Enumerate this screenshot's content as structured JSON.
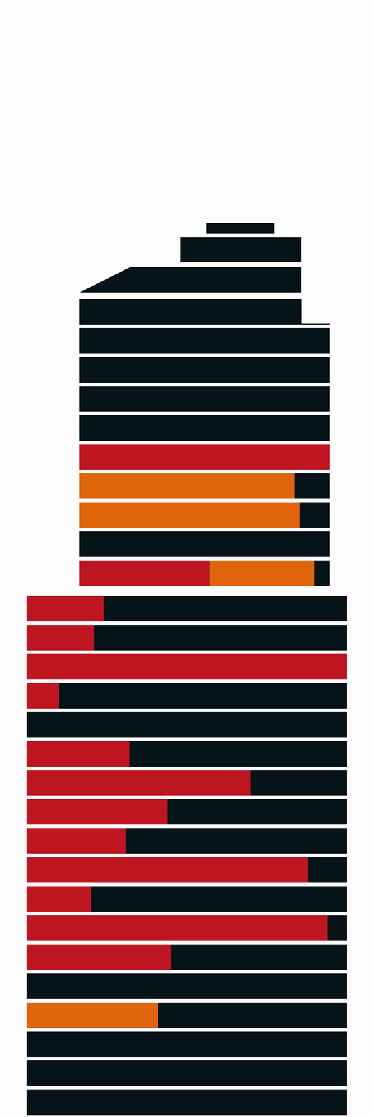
{
  "chart_data": [
    {
      "type": "bar",
      "orientation": "horizontal",
      "stacked": true,
      "tick_labels": false,
      "categories": [
        null,
        null,
        null,
        null,
        null,
        null,
        null,
        null,
        null,
        null
      ],
      "xlim": [
        0,
        100
      ],
      "series": [
        {
          "color": "#be1620",
          "values": [
            0,
            0,
            0,
            0,
            0,
            100,
            0,
            0,
            0,
            52
          ]
        },
        {
          "color": "#e0640c",
          "values": [
            0,
            0,
            0,
            0,
            0,
            0,
            86,
            88,
            0,
            42
          ]
        }
      ]
    },
    {
      "type": "bar",
      "orientation": "horizontal",
      "stacked": true,
      "tick_labels": false,
      "categories": [
        null,
        null,
        null,
        null,
        null,
        null,
        null,
        null,
        null,
        null,
        null,
        null,
        null,
        null,
        null,
        null,
        null,
        null
      ],
      "xlim": [
        0,
        100
      ],
      "series": [
        {
          "color": "#be1620",
          "values": [
            24,
            21,
            100,
            10,
            0,
            32,
            70,
            44,
            31,
            88,
            20,
            94,
            45,
            0,
            0,
            0,
            0,
            0
          ]
        },
        {
          "color": "#e0640c",
          "values": [
            0,
            0,
            0,
            0,
            0,
            0,
            0,
            0,
            0,
            0,
            0,
            0,
            0,
            0,
            41,
            0,
            0,
            0
          ]
        }
      ]
    }
  ]
}
